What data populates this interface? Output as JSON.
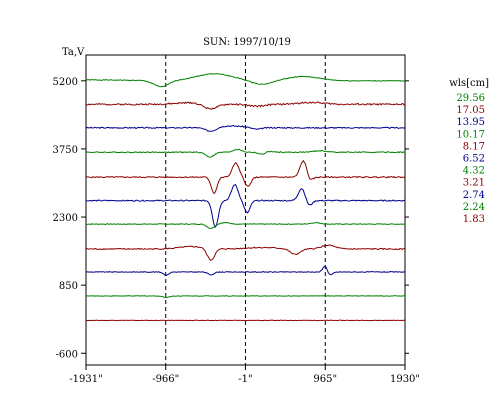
{
  "chart_data": {
    "type": "line",
    "title": "SUN: 1997/10/19",
    "ylabel": "Ta,V",
    "xlim": [
      -1931,
      1930
    ],
    "ylim": [
      -850,
      5750
    ],
    "x_ticks": [
      {
        "value": -1931,
        "label": "-1931\""
      },
      {
        "value": -966,
        "label": "-966\""
      },
      {
        "value": -1,
        "label": "-1\""
      },
      {
        "value": 965,
        "label": "965\""
      },
      {
        "value": 1930,
        "label": "1930\""
      }
    ],
    "y_ticks": [
      {
        "value": 5200,
        "label": "5200"
      },
      {
        "value": 3750,
        "label": "3750"
      },
      {
        "value": 2300,
        "label": "2300"
      },
      {
        "value": 850,
        "label": "850"
      },
      {
        "value": -600,
        "label": "-600"
      }
    ],
    "vertical_guides": [
      -966,
      -1,
      965
    ],
    "legend_title": "wls[cm]",
    "series": [
      {
        "name": "29.56",
        "color": "#008000",
        "baseline": 5200,
        "noise": 8,
        "features": [
          [
            -1020,
            -130,
            90
          ],
          [
            -380,
            150,
            220
          ],
          [
            200,
            -80,
            120
          ],
          [
            700,
            90,
            200
          ],
          [
            -1931,
            20,
            500
          ]
        ]
      },
      {
        "name": "17.05",
        "color": "#8b0000",
        "baseline": 4700,
        "noise": 16,
        "features": [
          [
            -430,
            -120,
            90
          ],
          [
            -600,
            40,
            200
          ],
          [
            130,
            -40,
            100
          ],
          [
            800,
            40,
            150
          ]
        ]
      },
      {
        "name": "13.95",
        "color": "#00008b",
        "baseline": 4200,
        "noise": 12,
        "features": [
          [
            -420,
            -90,
            70
          ],
          [
            130,
            -40,
            60
          ],
          [
            -200,
            40,
            200
          ]
        ]
      },
      {
        "name": "10.17",
        "color": "#008000",
        "baseline": 3680,
        "noise": 10,
        "features": [
          [
            -430,
            -100,
            50
          ],
          [
            -100,
            60,
            50
          ],
          [
            210,
            -70,
            45
          ],
          [
            250,
            40,
            50
          ],
          [
            900,
            30,
            80
          ]
        ]
      },
      {
        "name": "8.17",
        "color": "#8b0000",
        "baseline": 3150,
        "noise": 12,
        "features": [
          [
            -380,
            -340,
            35
          ],
          [
            -120,
            300,
            40
          ],
          [
            30,
            -200,
            35
          ],
          [
            700,
            350,
            40
          ],
          [
            780,
            -80,
            35
          ]
        ]
      },
      {
        "name": "6.52",
        "color": "#00008b",
        "baseline": 2650,
        "noise": 12,
        "features": [
          [
            -365,
            -560,
            35
          ],
          [
            -130,
            340,
            40
          ],
          [
            20,
            -260,
            35
          ],
          [
            680,
            260,
            40
          ],
          [
            770,
            -110,
            35
          ]
        ]
      },
      {
        "name": "4.32",
        "color": "#008000",
        "baseline": 2150,
        "noise": 8,
        "features": [
          [
            -420,
            -90,
            45
          ],
          [
            -250,
            30,
            60
          ],
          [
            850,
            30,
            60
          ]
        ]
      },
      {
        "name": "3.21",
        "color": "#8b0000",
        "baseline": 1620,
        "noise": 12,
        "features": [
          [
            -420,
            -250,
            45
          ],
          [
            -650,
            50,
            150
          ],
          [
            600,
            -120,
            60
          ],
          [
            1000,
            80,
            80
          ],
          [
            200,
            30,
            200
          ]
        ]
      },
      {
        "name": "2.74",
        "color": "#00008b",
        "baseline": 1130,
        "noise": 8,
        "features": [
          [
            -960,
            -70,
            30
          ],
          [
            -420,
            -60,
            35
          ],
          [
            960,
            130,
            25
          ],
          [
            1030,
            -60,
            30
          ]
        ]
      },
      {
        "name": "2.24",
        "color": "#008000",
        "baseline": 620,
        "noise": 6,
        "features": [
          [
            -960,
            -30,
            40
          ]
        ]
      },
      {
        "name": "1.83",
        "color": "#8b0000",
        "baseline": 100,
        "noise": 5,
        "features": []
      }
    ]
  }
}
